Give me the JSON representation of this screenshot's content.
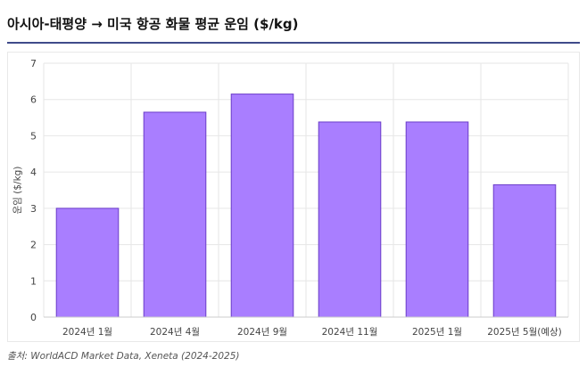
{
  "title": "아시아-태평양 → 미국 항공 화물 평균 운임 ($/kg)",
  "source": "출처: WorldACD Market Data, Xeneta (2024-2025)",
  "colors": {
    "bar_fill": "#a97eff",
    "bar_stroke": "#6a3cc9",
    "grid": "#e6e6e6",
    "axis": "#888888",
    "title_rule": "#3f4a8a"
  },
  "chart_data": {
    "type": "bar",
    "title": "아시아-태평양 → 미국 항공 화물 평균 운임 ($/kg)",
    "xlabel": "",
    "ylabel": "운임 ($/kg)",
    "categories": [
      "2024년 1월",
      "2024년 4월",
      "2024년 9월",
      "2024년 11월",
      "2025년 1월",
      "2025년 5월(예상)"
    ],
    "values": [
      3.0,
      5.65,
      6.15,
      5.38,
      5.38,
      3.65
    ],
    "ylim": [
      0,
      7
    ],
    "yticks": [
      0,
      1,
      2,
      3,
      4,
      5,
      6,
      7
    ],
    "grid": true,
    "legend": "none"
  }
}
